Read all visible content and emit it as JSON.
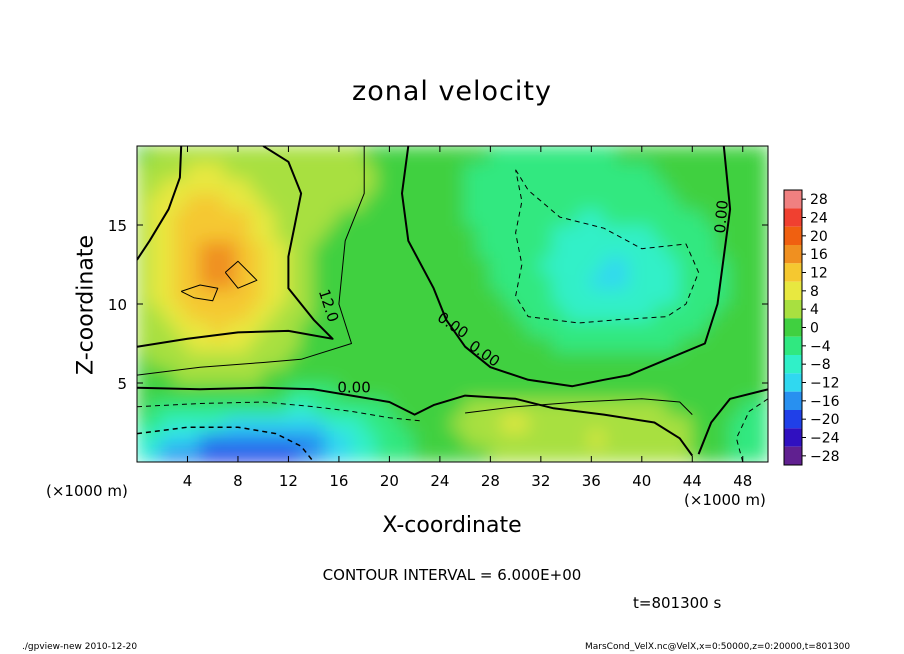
{
  "chart_data": {
    "type": "heatmap",
    "title": "zonal velocity",
    "xlabel": "X-coordinate",
    "ylabel": "Z-coordinate",
    "x_unit": "(×1000 m)",
    "y_unit": "(×1000 m)",
    "xlim": [
      0,
      50
    ],
    "ylim": [
      0,
      20
    ],
    "x_ticks": [
      4,
      8,
      12,
      16,
      20,
      24,
      28,
      32,
      36,
      40,
      44,
      48
    ],
    "y_ticks": [
      5,
      10,
      15
    ],
    "colorbar_levels": [
      28,
      24,
      20,
      16,
      12,
      8,
      4,
      0,
      -4,
      -8,
      -12,
      -16,
      -20,
      -24,
      -28
    ],
    "colorbar_colors": [
      "#f08080",
      "#f04030",
      "#f06010",
      "#f09020",
      "#f5c830",
      "#e8e840",
      "#a8e040",
      "#40d040",
      "#30e880",
      "#30f0c8",
      "#30d8f0",
      "#2890f0",
      "#2040e8",
      "#3010c0",
      "#602090"
    ],
    "contour_interval": "CONTOUR INTERVAL = 6.000E+00",
    "contour_labels": [
      "12.0",
      "0.00",
      "0.00",
      "0.00",
      "0.00"
    ],
    "time": "t=801300 s",
    "regions": [
      {
        "name": "upper-left jet maximum",
        "x_range": [
          0,
          14
        ],
        "z_range": [
          8,
          20
        ],
        "value_range": [
          12,
          20
        ]
      },
      {
        "name": "lower-left reversed flow",
        "x_range": [
          0,
          18
        ],
        "z_range": [
          0,
          4
        ],
        "value_range": [
          -20,
          -6
        ]
      },
      {
        "name": "upper-right reversed flow",
        "x_range": [
          30,
          45
        ],
        "z_range": [
          8,
          15
        ],
        "value_range": [
          -12,
          -6
        ]
      },
      {
        "name": "lower-right weak positive",
        "x_range": [
          26,
          44
        ],
        "z_range": [
          0,
          4
        ],
        "value_range": [
          4,
          10
        ]
      }
    ]
  },
  "footer": {
    "left": "./gpview-new  2010-12-20",
    "right": "MarsCond_VelX.nc@VelX,x=0:50000,z=0:20000,t=801300"
  }
}
